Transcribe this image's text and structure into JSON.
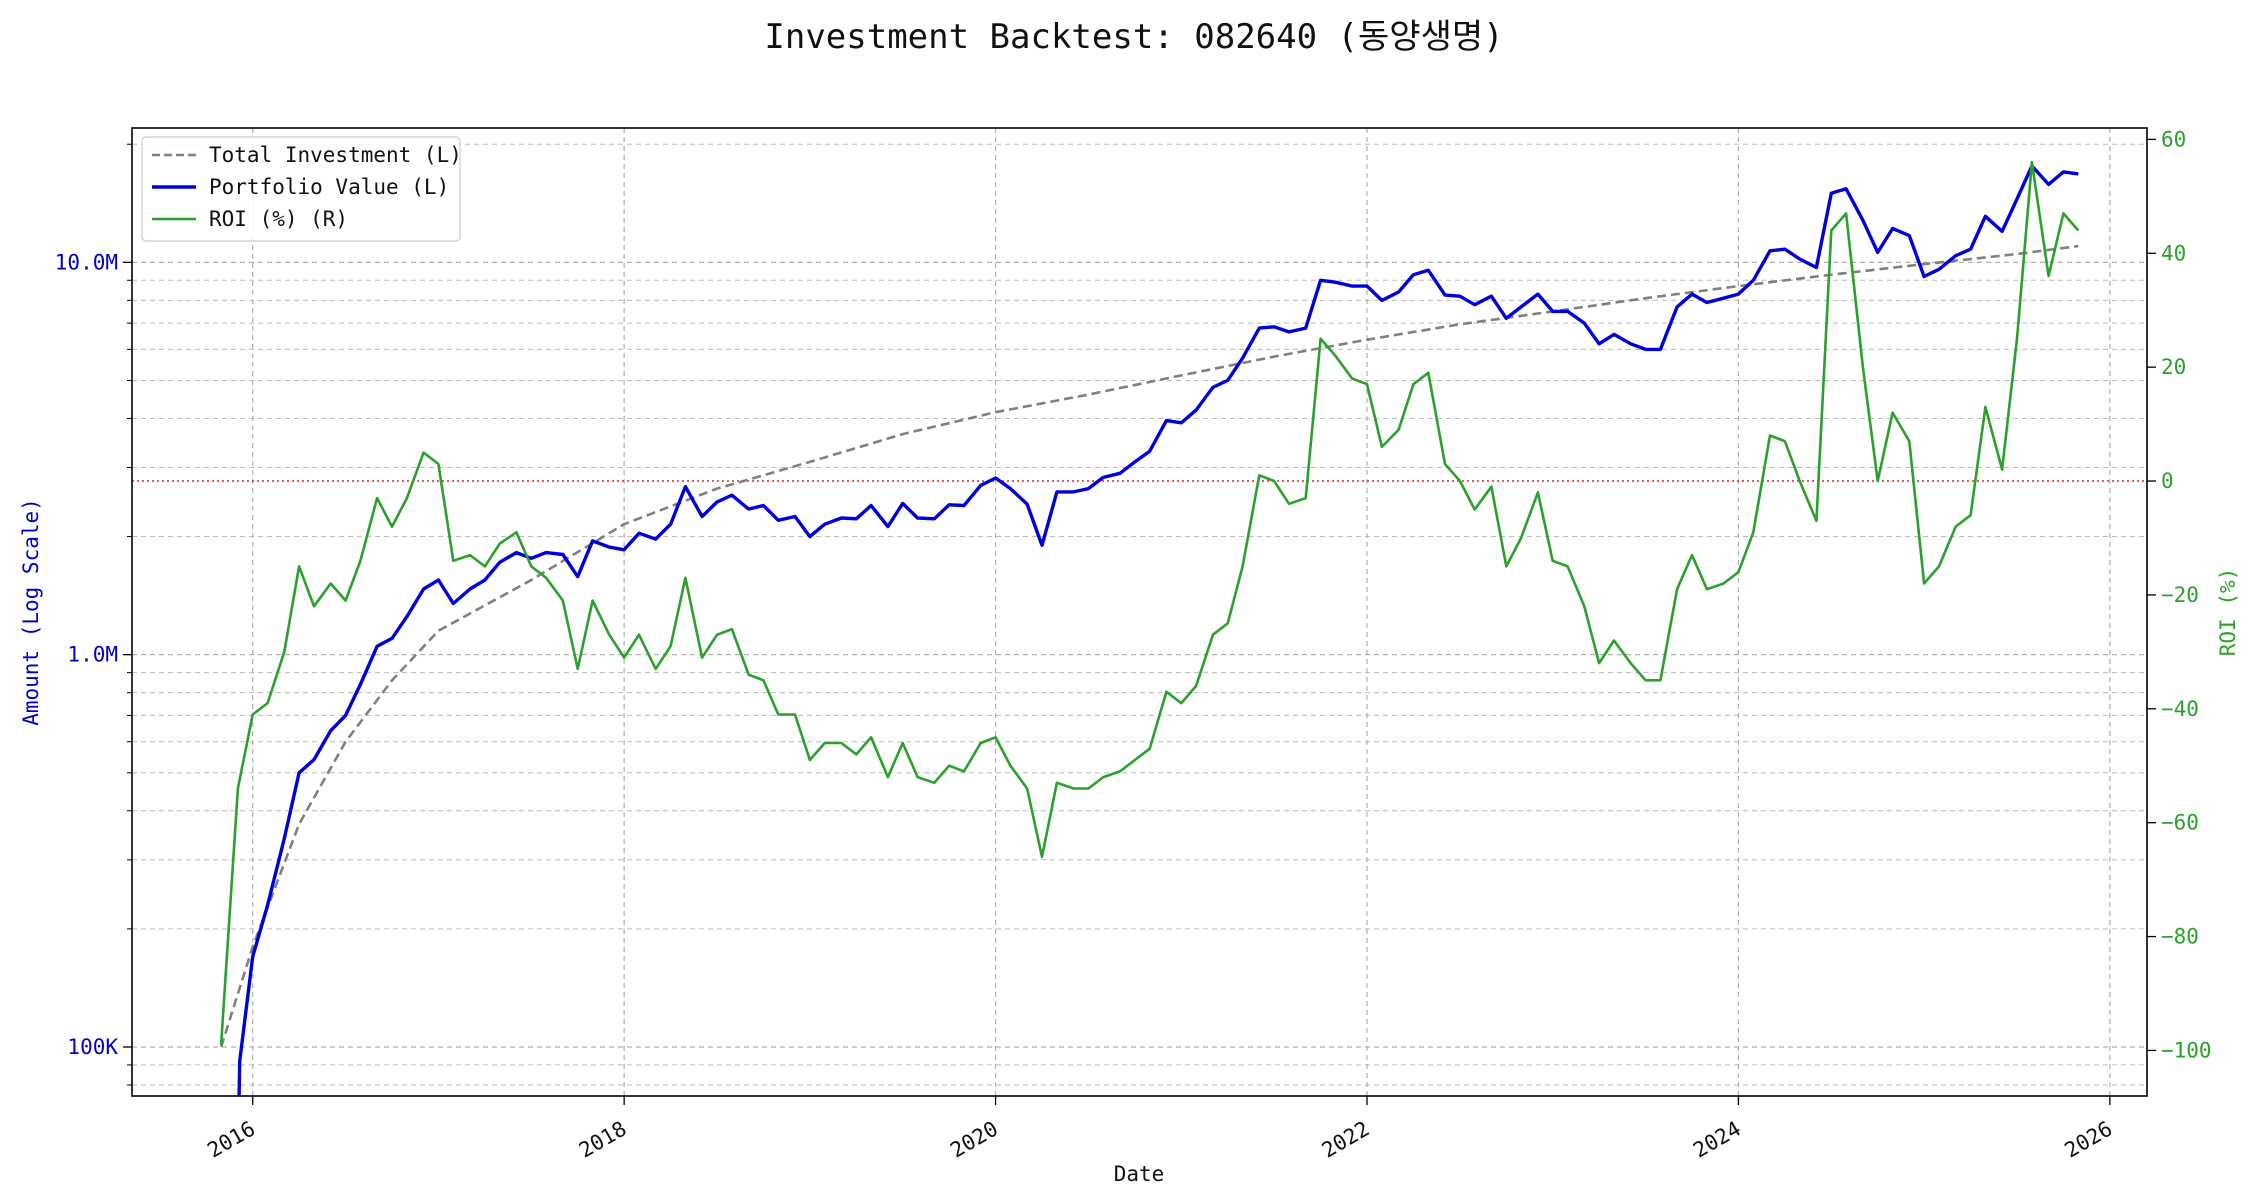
{
  "chart_data": {
    "type": "line",
    "title": "Investment Backtest: 082640 (동양생명)",
    "xlabel": "Date",
    "ylabel_left": "Amount (Log Scale)",
    "ylabel_right": "ROI (%)",
    "left_scale": "log",
    "left_ylim": [
      75000,
      22000000
    ],
    "right_ylim": [
      -108,
      62
    ],
    "xlim": [
      2015.35,
      2026.2
    ],
    "x_ticks": [
      2016,
      2018,
      2020,
      2022,
      2024,
      2026
    ],
    "x_tick_labels": [
      "2016",
      "2018",
      "2020",
      "2022",
      "2024",
      "2026"
    ],
    "left_ticks": [
      {
        "value": 100000,
        "label": "100K"
      },
      {
        "value": 1000000,
        "label": "1.0M"
      },
      {
        "value": 10000000,
        "label": "10.0M"
      }
    ],
    "right_ticks": [
      -100,
      -80,
      -60,
      -40,
      -20,
      0,
      20,
      40,
      60
    ],
    "reference_line": {
      "axis": "right",
      "value": 0,
      "color": "#d62728",
      "style": "dotted"
    },
    "grid": true,
    "legend_position": "upper-left",
    "colors": {
      "total_investment": "#808080",
      "portfolio_value": "#0000dd",
      "roi": "#2ca02c",
      "left_axis": "#0000cc",
      "right_axis": "#2ca02c"
    },
    "series": [
      {
        "name": "Total Investment (L)",
        "axis": "left",
        "style": "dashed",
        "points": [
          [
            2015.83,
            100000
          ],
          [
            2016.0,
            180000
          ],
          [
            2016.25,
            370000
          ],
          [
            2016.5,
            600000
          ],
          [
            2016.75,
            860000
          ],
          [
            2017.0,
            1150000
          ],
          [
            2017.5,
            1550000
          ],
          [
            2018.0,
            2150000
          ],
          [
            2018.5,
            2650000
          ],
          [
            2019.0,
            3100000
          ],
          [
            2019.5,
            3650000
          ],
          [
            2020.0,
            4150000
          ],
          [
            2020.5,
            4600000
          ],
          [
            2021.0,
            5150000
          ],
          [
            2021.5,
            5750000
          ],
          [
            2022.0,
            6350000
          ],
          [
            2022.5,
            6950000
          ],
          [
            2023.0,
            7500000
          ],
          [
            2023.5,
            8100000
          ],
          [
            2024.0,
            8700000
          ],
          [
            2024.5,
            9300000
          ],
          [
            2025.0,
            9900000
          ],
          [
            2025.5,
            10500000
          ],
          [
            2025.83,
            11000000
          ]
        ]
      },
      {
        "name": "Portfolio Value (L)",
        "axis": "left",
        "style": "solid",
        "points": [
          [
            2015.92,
            50000
          ],
          [
            2015.93,
            92000
          ],
          [
            2016.0,
            170000
          ],
          [
            2016.08,
            230000
          ],
          [
            2016.17,
            340000
          ],
          [
            2016.25,
            500000
          ],
          [
            2016.33,
            540000
          ],
          [
            2016.42,
            640000
          ],
          [
            2016.5,
            700000
          ],
          [
            2016.58,
            840000
          ],
          [
            2016.67,
            1050000
          ],
          [
            2016.75,
            1100000
          ],
          [
            2016.83,
            1250000
          ],
          [
            2016.92,
            1470000
          ],
          [
            2017.0,
            1550000
          ],
          [
            2017.08,
            1350000
          ],
          [
            2017.17,
            1470000
          ],
          [
            2017.25,
            1550000
          ],
          [
            2017.33,
            1720000
          ],
          [
            2017.42,
            1820000
          ],
          [
            2017.5,
            1760000
          ],
          [
            2017.58,
            1820000
          ],
          [
            2017.67,
            1800000
          ],
          [
            2017.75,
            1580000
          ],
          [
            2017.83,
            1950000
          ],
          [
            2017.92,
            1880000
          ],
          [
            2018.0,
            1850000
          ],
          [
            2018.08,
            2040000
          ],
          [
            2018.17,
            1970000
          ],
          [
            2018.25,
            2150000
          ],
          [
            2018.33,
            2680000
          ],
          [
            2018.42,
            2250000
          ],
          [
            2018.5,
            2450000
          ],
          [
            2018.58,
            2550000
          ],
          [
            2018.67,
            2350000
          ],
          [
            2018.75,
            2400000
          ],
          [
            2018.83,
            2200000
          ],
          [
            2018.92,
            2250000
          ],
          [
            2019.0,
            2000000
          ],
          [
            2019.08,
            2150000
          ],
          [
            2019.17,
            2230000
          ],
          [
            2019.25,
            2220000
          ],
          [
            2019.33,
            2400000
          ],
          [
            2019.42,
            2120000
          ],
          [
            2019.5,
            2430000
          ],
          [
            2019.58,
            2230000
          ],
          [
            2019.67,
            2220000
          ],
          [
            2019.75,
            2410000
          ],
          [
            2019.83,
            2400000
          ],
          [
            2019.92,
            2700000
          ],
          [
            2020.0,
            2820000
          ],
          [
            2020.08,
            2650000
          ],
          [
            2020.17,
            2420000
          ],
          [
            2020.25,
            1900000
          ],
          [
            2020.33,
            2600000
          ],
          [
            2020.42,
            2600000
          ],
          [
            2020.5,
            2650000
          ],
          [
            2020.58,
            2830000
          ],
          [
            2020.67,
            2900000
          ],
          [
            2020.75,
            3100000
          ],
          [
            2020.83,
            3300000
          ],
          [
            2020.92,
            3950000
          ],
          [
            2021.0,
            3900000
          ],
          [
            2021.08,
            4200000
          ],
          [
            2021.17,
            4800000
          ],
          [
            2021.25,
            5000000
          ],
          [
            2021.33,
            5700000
          ],
          [
            2021.42,
            6800000
          ],
          [
            2021.5,
            6850000
          ],
          [
            2021.58,
            6650000
          ],
          [
            2021.67,
            6800000
          ],
          [
            2021.75,
            9000000
          ],
          [
            2021.83,
            8900000
          ],
          [
            2021.92,
            8700000
          ],
          [
            2022.0,
            8700000
          ],
          [
            2022.08,
            8000000
          ],
          [
            2022.17,
            8400000
          ],
          [
            2022.25,
            9300000
          ],
          [
            2022.33,
            9550000
          ],
          [
            2022.42,
            8250000
          ],
          [
            2022.5,
            8200000
          ],
          [
            2022.58,
            7800000
          ],
          [
            2022.67,
            8200000
          ],
          [
            2022.75,
            7200000
          ],
          [
            2022.83,
            7700000
          ],
          [
            2022.92,
            8300000
          ],
          [
            2023.0,
            7500000
          ],
          [
            2023.08,
            7500000
          ],
          [
            2023.17,
            7000000
          ],
          [
            2023.25,
            6200000
          ],
          [
            2023.33,
            6550000
          ],
          [
            2023.42,
            6200000
          ],
          [
            2023.5,
            6000000
          ],
          [
            2023.58,
            6000000
          ],
          [
            2023.67,
            7700000
          ],
          [
            2023.75,
            8300000
          ],
          [
            2023.83,
            7900000
          ],
          [
            2023.92,
            8100000
          ],
          [
            2024.0,
            8300000
          ],
          [
            2024.08,
            9000000
          ],
          [
            2024.17,
            10700000
          ],
          [
            2024.25,
            10800000
          ],
          [
            2024.33,
            10200000
          ],
          [
            2024.42,
            9700000
          ],
          [
            2024.5,
            15000000
          ],
          [
            2024.58,
            15400000
          ],
          [
            2024.67,
            12800000
          ],
          [
            2024.75,
            10600000
          ],
          [
            2024.83,
            12200000
          ],
          [
            2024.92,
            11700000
          ],
          [
            2025.0,
            9200000
          ],
          [
            2025.08,
            9600000
          ],
          [
            2025.17,
            10400000
          ],
          [
            2025.25,
            10800000
          ],
          [
            2025.33,
            13100000
          ],
          [
            2025.42,
            12000000
          ],
          [
            2025.5,
            14500000
          ],
          [
            2025.58,
            17600000
          ],
          [
            2025.67,
            15800000
          ],
          [
            2025.75,
            17000000
          ],
          [
            2025.83,
            16800000
          ]
        ]
      },
      {
        "name": "ROI (%) (R)",
        "axis": "right",
        "style": "solid",
        "points": [
          [
            2015.83,
            -99
          ],
          [
            2015.92,
            -54
          ],
          [
            2016.0,
            -41
          ],
          [
            2016.08,
            -39
          ],
          [
            2016.17,
            -30
          ],
          [
            2016.25,
            -15
          ],
          [
            2016.33,
            -22
          ],
          [
            2016.42,
            -18
          ],
          [
            2016.5,
            -21
          ],
          [
            2016.58,
            -14
          ],
          [
            2016.67,
            -3
          ],
          [
            2016.75,
            -8
          ],
          [
            2016.83,
            -3
          ],
          [
            2016.92,
            5
          ],
          [
            2017.0,
            3
          ],
          [
            2017.08,
            -14
          ],
          [
            2017.17,
            -13
          ],
          [
            2017.25,
            -15
          ],
          [
            2017.33,
            -11
          ],
          [
            2017.42,
            -9
          ],
          [
            2017.5,
            -15
          ],
          [
            2017.58,
            -17
          ],
          [
            2017.67,
            -21
          ],
          [
            2017.75,
            -33
          ],
          [
            2017.83,
            -21
          ],
          [
            2017.92,
            -27
          ],
          [
            2018.0,
            -31
          ],
          [
            2018.08,
            -27
          ],
          [
            2018.17,
            -33
          ],
          [
            2018.25,
            -29
          ],
          [
            2018.33,
            -17
          ],
          [
            2018.42,
            -31
          ],
          [
            2018.5,
            -27
          ],
          [
            2018.58,
            -26
          ],
          [
            2018.67,
            -34
          ],
          [
            2018.75,
            -35
          ],
          [
            2018.83,
            -41
          ],
          [
            2018.92,
            -41
          ],
          [
            2019.0,
            -49
          ],
          [
            2019.08,
            -46
          ],
          [
            2019.17,
            -46
          ],
          [
            2019.25,
            -48
          ],
          [
            2019.33,
            -45
          ],
          [
            2019.42,
            -52
          ],
          [
            2019.5,
            -46
          ],
          [
            2019.58,
            -52
          ],
          [
            2019.67,
            -53
          ],
          [
            2019.75,
            -50
          ],
          [
            2019.83,
            -51
          ],
          [
            2019.92,
            -46
          ],
          [
            2020.0,
            -45
          ],
          [
            2020.08,
            -50
          ],
          [
            2020.17,
            -54
          ],
          [
            2020.25,
            -66
          ],
          [
            2020.33,
            -53
          ],
          [
            2020.42,
            -54
          ],
          [
            2020.5,
            -54
          ],
          [
            2020.58,
            -52
          ],
          [
            2020.67,
            -51
          ],
          [
            2020.75,
            -49
          ],
          [
            2020.83,
            -47
          ],
          [
            2020.92,
            -37
          ],
          [
            2021.0,
            -39
          ],
          [
            2021.08,
            -36
          ],
          [
            2021.17,
            -27
          ],
          [
            2021.25,
            -25
          ],
          [
            2021.33,
            -15
          ],
          [
            2021.42,
            1
          ],
          [
            2021.5,
            0
          ],
          [
            2021.58,
            -4
          ],
          [
            2021.67,
            -3
          ],
          [
            2021.75,
            25
          ],
          [
            2021.83,
            22
          ],
          [
            2021.92,
            18
          ],
          [
            2022.0,
            17
          ],
          [
            2022.08,
            6
          ],
          [
            2022.17,
            9
          ],
          [
            2022.25,
            17
          ],
          [
            2022.33,
            19
          ],
          [
            2022.42,
            3
          ],
          [
            2022.5,
            0
          ],
          [
            2022.58,
            -5
          ],
          [
            2022.67,
            -1
          ],
          [
            2022.75,
            -15
          ],
          [
            2022.83,
            -10
          ],
          [
            2022.92,
            -2
          ],
          [
            2023.0,
            -14
          ],
          [
            2023.08,
            -15
          ],
          [
            2023.17,
            -22
          ],
          [
            2023.25,
            -32
          ],
          [
            2023.33,
            -28
          ],
          [
            2023.42,
            -32
          ],
          [
            2023.5,
            -35
          ],
          [
            2023.58,
            -35
          ],
          [
            2023.67,
            -19
          ],
          [
            2023.75,
            -13
          ],
          [
            2023.83,
            -19
          ],
          [
            2023.92,
            -18
          ],
          [
            2024.0,
            -16
          ],
          [
            2024.08,
            -9
          ],
          [
            2024.17,
            8
          ],
          [
            2024.25,
            7
          ],
          [
            2024.33,
            0
          ],
          [
            2024.42,
            -7
          ],
          [
            2024.5,
            44
          ],
          [
            2024.58,
            47
          ],
          [
            2024.67,
            20
          ],
          [
            2024.75,
            0
          ],
          [
            2024.83,
            12
          ],
          [
            2024.92,
            7
          ],
          [
            2025.0,
            -18
          ],
          [
            2025.08,
            -15
          ],
          [
            2025.17,
            -8
          ],
          [
            2025.25,
            -6
          ],
          [
            2025.33,
            13
          ],
          [
            2025.42,
            2
          ],
          [
            2025.5,
            25
          ],
          [
            2025.58,
            56
          ],
          [
            2025.67,
            36
          ],
          [
            2025.75,
            47
          ],
          [
            2025.83,
            44
          ]
        ]
      }
    ]
  }
}
